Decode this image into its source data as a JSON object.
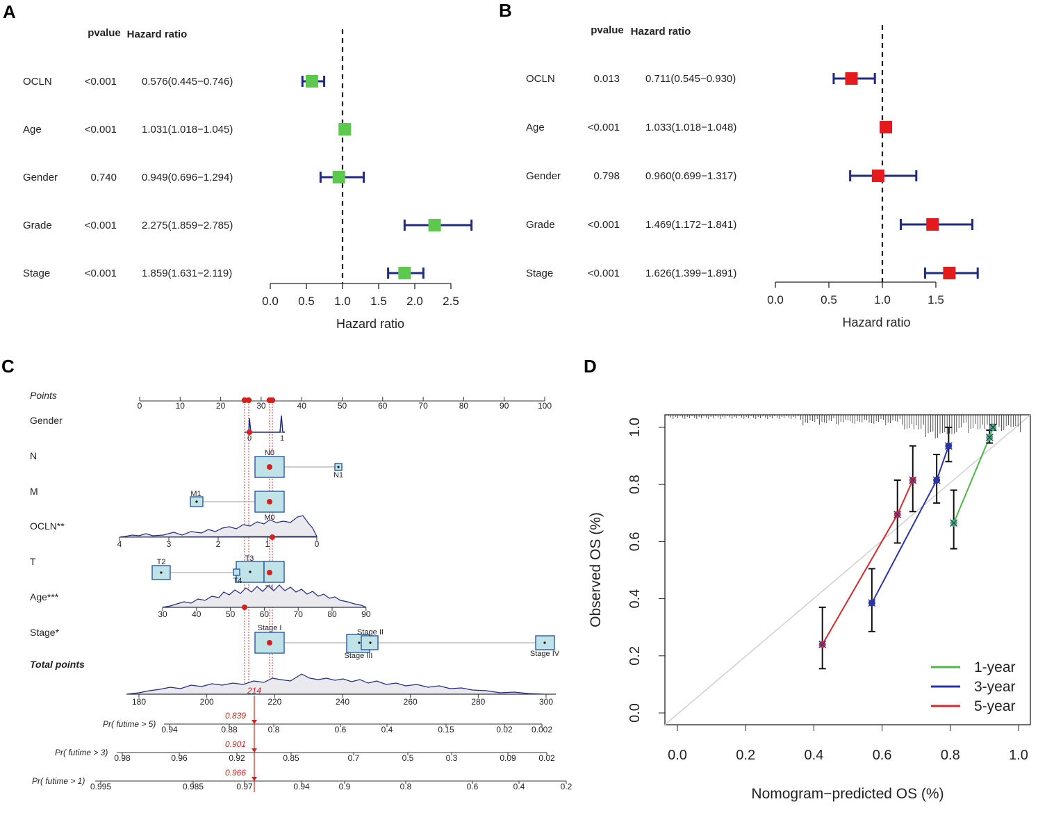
{
  "figure_labels": {
    "a": "A",
    "b": "B",
    "c": "C",
    "d": "D"
  },
  "chart_data": [
    {
      "type": "forest",
      "panel": "A",
      "header_pvalue": "pvalue",
      "header_hr": "Hazard ratio",
      "xlabel": "Hazard ratio",
      "xlim": [
        0,
        2.5
      ],
      "xticks": [
        "0.0",
        "0.5",
        "1.0",
        "1.5",
        "2.0",
        "2.5"
      ],
      "reference_line": 1.0,
      "marker_color": "#5cc94e",
      "rows": [
        {
          "name": "OCLN",
          "pvalue": "<0.001",
          "hr_text": "0.576(0.445−0.746)",
          "hr": 0.576,
          "lo": 0.445,
          "hi": 0.746
        },
        {
          "name": "Age",
          "pvalue": "<0.001",
          "hr_text": "1.031(1.018−1.045)",
          "hr": 1.031,
          "lo": 1.018,
          "hi": 1.045
        },
        {
          "name": "Gender",
          "pvalue": "0.740",
          "hr_text": "0.949(0.696−1.294)",
          "hr": 0.949,
          "lo": 0.696,
          "hi": 1.294
        },
        {
          "name": "Grade",
          "pvalue": "<0.001",
          "hr_text": "2.275(1.859−2.785)",
          "hr": 2.275,
          "lo": 1.859,
          "hi": 2.785
        },
        {
          "name": "Stage",
          "pvalue": "<0.001",
          "hr_text": "1.859(1.631−2.119)",
          "hr": 1.859,
          "lo": 1.631,
          "hi": 2.119
        }
      ]
    },
    {
      "type": "forest",
      "panel": "B",
      "header_pvalue": "pvalue",
      "header_hr": "Hazard ratio",
      "xlabel": "Hazard ratio",
      "xlim": [
        0,
        1.5
      ],
      "xticks": [
        "0.0",
        "0.5",
        "1.0",
        "1.5"
      ],
      "reference_line": 1.0,
      "marker_color": "#e41a1c",
      "rows": [
        {
          "name": "OCLN",
          "pvalue": "0.013",
          "hr_text": "0.711(0.545−0.930)",
          "hr": 0.711,
          "lo": 0.545,
          "hi": 0.93
        },
        {
          "name": "Age",
          "pvalue": "<0.001",
          "hr_text": "1.033(1.018−1.048)",
          "hr": 1.033,
          "lo": 1.018,
          "hi": 1.048
        },
        {
          "name": "Gender",
          "pvalue": "0.798",
          "hr_text": "0.960(0.699−1.317)",
          "hr": 0.96,
          "lo": 0.699,
          "hi": 1.317
        },
        {
          "name": "Grade",
          "pvalue": "<0.001",
          "hr_text": "1.469(1.172−1.841)",
          "hr": 1.469,
          "lo": 1.172,
          "hi": 1.841
        },
        {
          "name": "Stage",
          "pvalue": "<0.001",
          "hr_text": "1.626(1.399−1.891)",
          "hr": 1.626,
          "lo": 1.399,
          "hi": 1.891
        }
      ]
    },
    {
      "type": "nomogram",
      "panel": "C",
      "points_label": "Points",
      "points_ticks": [
        "0",
        "10",
        "20",
        "30",
        "40",
        "50",
        "60",
        "70",
        "80",
        "90",
        "100"
      ],
      "selected_points": 31,
      "variables": [
        {
          "name": "Gender",
          "labels": [
            "0",
            "1"
          ],
          "selected": "0"
        },
        {
          "name": "N",
          "labels": [
            "N0",
            "N1"
          ],
          "selected": "N0"
        },
        {
          "name": "M",
          "labels": [
            "M1",
            "M0"
          ],
          "selected": "M0"
        },
        {
          "name": "OCLN**",
          "ticks": [
            "4",
            "3",
            "2",
            "1",
            "0"
          ],
          "selected": 0.95
        },
        {
          "name": "T",
          "labels": [
            "T2",
            "T3",
            "T4",
            "T1"
          ],
          "selected": "T1"
        },
        {
          "name": "Age***",
          "ticks": [
            "30",
            "40",
            "50",
            "60",
            "70",
            "80",
            "90"
          ],
          "selected": 54
        },
        {
          "name": "Stage*",
          "labels": [
            "Stage I",
            "Stage II",
            "Stage III",
            "Stage IV"
          ],
          "selected": "Stage I"
        }
      ],
      "total_points_label": "Total points",
      "total_ticks": [
        "180",
        "200",
        "220",
        "240",
        "260",
        "280",
        "300"
      ],
      "total_value": "214",
      "probabilities": [
        {
          "label": "Pr( futime > 5)",
          "ticks": [
            "0.94",
            "0.88",
            "0.8",
            "0.6",
            "0.4",
            "0.15",
            "0.02",
            "0.002"
          ],
          "value": "0.839"
        },
        {
          "label": "Pr( futime > 3)",
          "ticks": [
            "0.98",
            "0.96",
            "0.92",
            "0.85",
            "0.7",
            "0.5",
            "0.3",
            "0.09",
            "0.02"
          ],
          "value": "0.901"
        },
        {
          "label": "Pr( futime > 1)",
          "ticks": [
            "0.995",
            "0.985",
            "0.97",
            "0.94",
            "0.9",
            "0.8",
            "0.6",
            "0.4",
            "0.2"
          ],
          "value": "0.966"
        }
      ]
    },
    {
      "type": "calibration",
      "panel": "D",
      "xlabel": "Nomogram−predicted OS (%)",
      "ylabel": "Observed OS (%)",
      "xlim": [
        0,
        1
      ],
      "ylim": [
        0,
        1
      ],
      "xticks": [
        "0.0",
        "0.2",
        "0.4",
        "0.6",
        "0.8",
        "1.0"
      ],
      "yticks": [
        "0.0",
        "0.2",
        "0.4",
        "0.6",
        "0.8",
        "1.0"
      ],
      "series": [
        {
          "name": "1-year",
          "color": "#4db84a",
          "points": [
            {
              "x": 0.81,
              "y": 0.665,
              "lo": 0.575,
              "hi": 0.78
            },
            {
              "x": 0.915,
              "y": 0.965,
              "lo": 0.945,
              "hi": 0.99
            },
            {
              "x": 0.925,
              "y": 1.0,
              "lo": 0.99,
              "hi": 1.01
            }
          ]
        },
        {
          "name": "3-year",
          "color": "#2b34a8",
          "points": [
            {
              "x": 0.57,
              "y": 0.385,
              "lo": 0.285,
              "hi": 0.505
            },
            {
              "x": 0.76,
              "y": 0.815,
              "lo": 0.735,
              "hi": 0.905
            },
            {
              "x": 0.795,
              "y": 0.935,
              "lo": 0.88,
              "hi": 1.0
            }
          ]
        },
        {
          "name": "5-year",
          "color": "#d62b2b",
          "points": [
            {
              "x": 0.425,
              "y": 0.24,
              "lo": 0.155,
              "hi": 0.37
            },
            {
              "x": 0.645,
              "y": 0.695,
              "lo": 0.595,
              "hi": 0.815
            },
            {
              "x": 0.69,
              "y": 0.815,
              "lo": 0.705,
              "hi": 0.935
            }
          ]
        }
      ]
    }
  ]
}
